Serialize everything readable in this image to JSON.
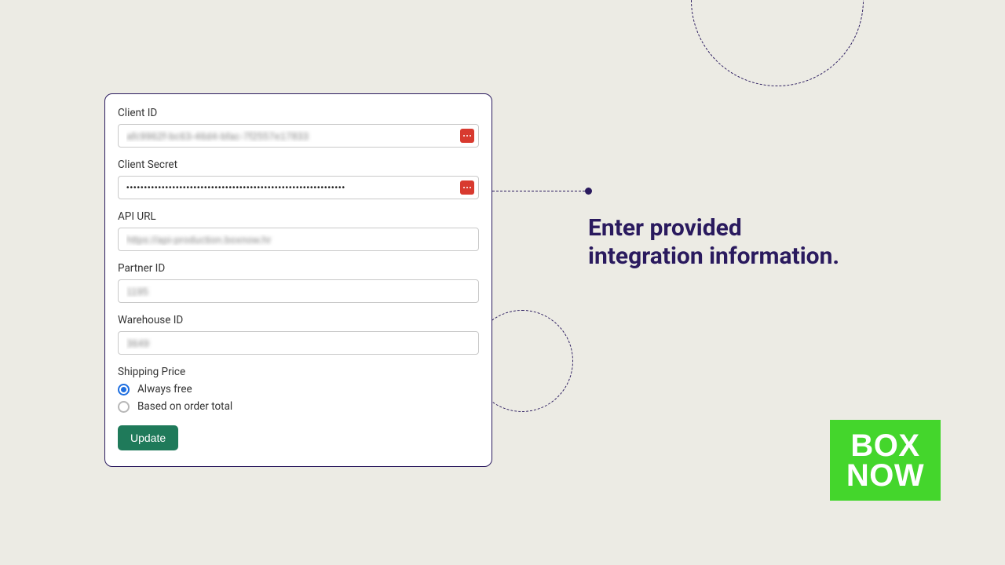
{
  "colors": {
    "background": "#ecebe4",
    "card_border": "#2a1a5e",
    "text": "#333333",
    "input_border": "#c9c9c9",
    "button_bg": "#1f7a5a",
    "button_text": "#ffffff",
    "radio_active": "#1f6fe0",
    "badge_bg": "#d83a2f",
    "logo_bg": "#44d62c",
    "logo_text": "#ffffff",
    "callout_text": "#2a1a5e"
  },
  "callout": {
    "line1": "Enter provided",
    "line2": "integration information."
  },
  "form": {
    "client_id": {
      "label": "Client ID",
      "value": "afc9962f-bc63-46d4-bfac-7f2557e17833"
    },
    "client_secret": {
      "label": "Client Secret",
      "value": "••••••••••••••••••••••••••••••••••••••••••••••••••••••••••••••"
    },
    "api_url": {
      "label": "API URL",
      "value": "https://api-production.boxnow.hr"
    },
    "partner_id": {
      "label": "Partner ID",
      "value": "1195"
    },
    "warehouse_id": {
      "label": "Warehouse ID",
      "value": "3649"
    },
    "shipping_price": {
      "label": "Shipping Price",
      "options": [
        {
          "label": "Always free",
          "checked": true
        },
        {
          "label": "Based on order total",
          "checked": false
        }
      ]
    },
    "update_button": "Update"
  },
  "logo": {
    "line1": "BOX",
    "line2": "NOW"
  }
}
